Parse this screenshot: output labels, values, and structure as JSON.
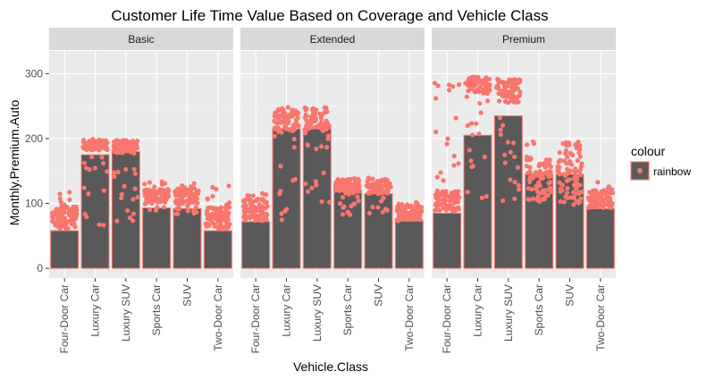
{
  "chart_data": {
    "type": "bar",
    "title": "Customer Life Time Value Based on Coverage and Vehicle Class",
    "xlabel": "Vehicle.Class",
    "ylabel": "Monthly.Premium.Auto",
    "ylim": [
      -15,
      335
    ],
    "yticks": [
      0,
      100,
      200,
      300
    ],
    "categories": [
      "Four-Door Car",
      "Luxury Car",
      "Luxury SUV",
      "Sports Car",
      "SUV",
      "Two-Door Car"
    ],
    "legend": {
      "title": "colour",
      "entries": [
        "rainbow"
      ],
      "position": "right"
    },
    "colors": {
      "point": "#F8766D",
      "bar_fill": "#595959",
      "panel_bg": "#EBEBEB",
      "strip_bg": "#D9D9D9",
      "grid": "#FFFFFF"
    },
    "facets": [
      {
        "name": "Basic",
        "values": [
          58,
          175,
          180,
          93,
          92,
          58
        ],
        "points": [
          {
            "category": "Four-Door Car",
            "min": 61,
            "max": 119,
            "dense_min": 61,
            "dense_max": 98
          },
          {
            "category": "Luxury Car",
            "min": 63,
            "max": 200,
            "dense_min": 182,
            "dense_max": 198
          },
          {
            "category": "Luxury SUV",
            "min": 63,
            "max": 205,
            "dense_min": 178,
            "dense_max": 198
          },
          {
            "category": "Sports Car",
            "min": 89,
            "max": 135,
            "dense_min": 100,
            "dense_max": 122
          },
          {
            "category": "SUV",
            "min": 83,
            "max": 131,
            "dense_min": 100,
            "dense_max": 125
          },
          {
            "category": "Two-Door Car",
            "min": 61,
            "max": 129,
            "dense_min": 61,
            "dense_max": 95
          }
        ]
      },
      {
        "name": "Extended",
        "values": [
          72,
          215,
          215,
          118,
          115,
          73
        ],
        "points": [
          {
            "category": "Four-Door Car",
            "min": 72,
            "max": 120,
            "dense_min": 74,
            "dense_max": 108
          },
          {
            "category": "Luxury Car",
            "min": 72,
            "max": 249,
            "dense_min": 210,
            "dense_max": 245
          },
          {
            "category": "Luxury SUV",
            "min": 72,
            "max": 250,
            "dense_min": 210,
            "dense_max": 248
          },
          {
            "category": "Sports Car",
            "min": 82,
            "max": 140,
            "dense_min": 118,
            "dense_max": 138
          },
          {
            "category": "SUV",
            "min": 85,
            "max": 140,
            "dense_min": 115,
            "dense_max": 138
          },
          {
            "category": "Two-Door Car",
            "min": 73,
            "max": 102,
            "dense_min": 75,
            "dense_max": 100
          }
        ]
      },
      {
        "name": "Premium",
        "values": [
          85,
          205,
          235,
          145,
          145,
          92
        ],
        "points": [
          {
            "category": "Four-Door Car",
            "min": 85,
            "max": 290,
            "dense_min": 87,
            "dense_max": 120
          },
          {
            "category": "Luxury Car",
            "min": 90,
            "max": 297,
            "dense_min": 270,
            "dense_max": 295
          },
          {
            "category": "Luxury SUV",
            "min": 100,
            "max": 297,
            "dense_min": 255,
            "dense_max": 292
          },
          {
            "category": "Sports Car",
            "min": 100,
            "max": 198,
            "dense_min": 105,
            "dense_max": 170
          },
          {
            "category": "SUV",
            "min": 98,
            "max": 200,
            "dense_min": 100,
            "dense_max": 196
          },
          {
            "category": "Two-Door Car",
            "min": 92,
            "max": 135,
            "dense_min": 92,
            "dense_max": 120
          }
        ]
      }
    ]
  }
}
